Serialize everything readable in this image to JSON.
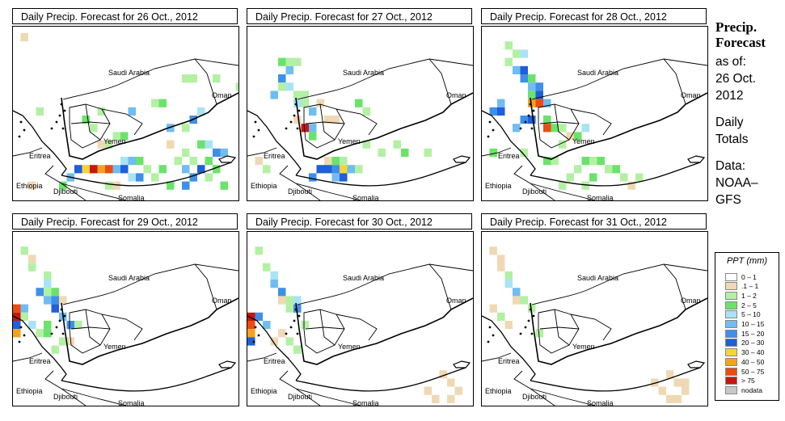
{
  "panels": [
    {
      "title": "Daily Precip. Forecast for  26 Oct., 2012",
      "day": 0
    },
    {
      "title": "Daily Precip. Forecast for  27 Oct., 2012",
      "day": 1
    },
    {
      "title": "Daily Precip. Forecast for  28 Oct., 2012",
      "day": 2
    },
    {
      "title": "Daily Precip. Forecast for  29 Oct., 2012",
      "day": 3
    },
    {
      "title": "Daily Precip. Forecast for  30 Oct., 2012",
      "day": 4
    },
    {
      "title": "Daily Precip. Forecast for  31 Oct., 2012",
      "day": 5
    }
  ],
  "map_labels": {
    "saudi": "Saudi Arabia",
    "oman": "Oman",
    "yemen": "Yemen",
    "eritrea": "Eritrea",
    "ethiopia": "Ethiopia",
    "djibouti": "Djibouti",
    "somalia": "Somalia"
  },
  "side": {
    "line1": "Precip.",
    "line2": "Forecast",
    "line3": "as of:",
    "line4": "26 Oct.",
    "line5": "2012",
    "line6": "Daily",
    "line7": "Totals",
    "line8": "Data:",
    "line9": "NOAA–",
    "line10": "GFS"
  },
  "legend": {
    "title": "PPT (mm)",
    "items": [
      {
        "label": "0 – 1",
        "color": "#ffffff"
      },
      {
        "label": ".1 – 1",
        "color": "#efd9b4"
      },
      {
        "label": "1 – 2",
        "color": "#b3f0a4"
      },
      {
        "label": "2 – 5",
        "color": "#6be36b"
      },
      {
        "label": "5 – 10",
        "color": "#a9e3f5"
      },
      {
        "label": "10 – 15",
        "color": "#6fbdf2"
      },
      {
        "label": "15 – 20",
        "color": "#3f8fe8"
      },
      {
        "label": "20 – 30",
        "color": "#1f5fd9"
      },
      {
        "label": "30 – 40",
        "color": "#f7d23a"
      },
      {
        "label": "40 – 50",
        "color": "#f5a21c"
      },
      {
        "label": "50 – 75",
        "color": "#ee4a12"
      },
      {
        "label": "> 75",
        "color": "#c4180c"
      },
      {
        "label": "nodata",
        "color": "#c8c8c8"
      }
    ]
  }
}
